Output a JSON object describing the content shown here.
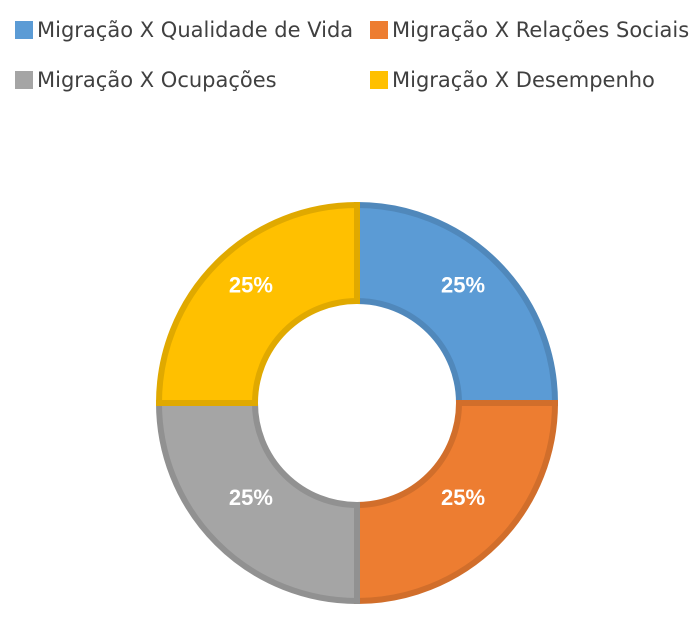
{
  "chart_data": {
    "type": "donut",
    "categories": [
      "Migração X Qualidade de Vida",
      "Migração X Relações Sociais",
      "Migração X Ocupações",
      "Migração X Desempenho"
    ],
    "values": [
      25,
      25,
      25,
      25
    ],
    "value_labels": [
      "25%",
      "25%",
      "25%",
      "25%"
    ],
    "colors": [
      "#5b9bd5",
      "#ed7d31",
      "#a5a5a5",
      "#ffc000"
    ],
    "legend": "top"
  }
}
